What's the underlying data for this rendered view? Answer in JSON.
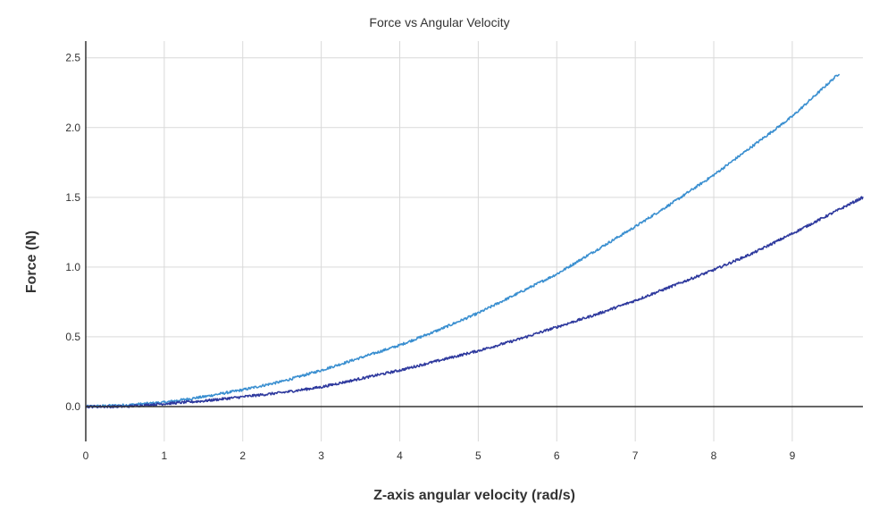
{
  "chart_data": {
    "type": "line",
    "title": "Force vs Angular Velocity",
    "xlabel": "Z-axis angular velocity (rad/s)",
    "ylabel": "Force (N)",
    "xlim": [
      0,
      9.9
    ],
    "ylim": [
      -0.25,
      2.62
    ],
    "x_ticks": [
      0,
      1,
      2,
      3,
      4,
      5,
      6,
      7,
      8,
      9
    ],
    "y_ticks": [
      0.0,
      0.5,
      1.0,
      1.5,
      2.0,
      2.5
    ],
    "y_tick_labels": [
      "0.0",
      "0.5",
      "1.0",
      "1.5",
      "2.0",
      "2.5"
    ],
    "grid": true,
    "legend": "none",
    "series": [
      {
        "color": "#3a8fd0",
        "x": [
          0,
          0.5,
          1,
          1.5,
          2,
          2.5,
          3,
          3.5,
          4,
          4.5,
          5,
          5.5,
          6,
          6.5,
          7,
          7.5,
          8,
          8.5,
          9,
          9.6
        ],
        "y": [
          0.0,
          0.01,
          0.03,
          0.07,
          0.12,
          0.18,
          0.26,
          0.35,
          0.44,
          0.55,
          0.67,
          0.81,
          0.95,
          1.12,
          1.29,
          1.47,
          1.66,
          1.87,
          2.08,
          2.39
        ]
      },
      {
        "color": "#2f3a9e",
        "x": [
          0,
          0.5,
          1,
          1.5,
          2,
          2.5,
          3,
          3.5,
          4,
          4.5,
          5,
          5.5,
          6,
          6.5,
          7,
          7.5,
          8,
          8.5,
          9,
          9.9
        ],
        "y": [
          0.0,
          0.0,
          0.02,
          0.04,
          0.07,
          0.1,
          0.14,
          0.2,
          0.26,
          0.33,
          0.4,
          0.48,
          0.57,
          0.66,
          0.76,
          0.87,
          0.98,
          1.1,
          1.24,
          1.5
        ]
      }
    ]
  }
}
